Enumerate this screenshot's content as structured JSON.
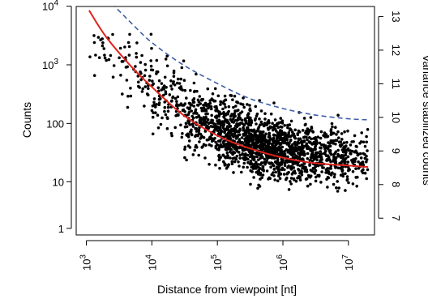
{
  "chart_data": {
    "type": "scatter",
    "xlabel": "Distance from viewpoint [nt]",
    "ylabel": "Counts",
    "y2label": "Variance stabilized counts",
    "x_scale": "log10",
    "y_scale": "variance-stabilized (asinh-like)",
    "xlim": [
      700,
      25000000
    ],
    "x_ticks": [
      {
        "value": 1000,
        "base": "10",
        "exp": "3"
      },
      {
        "value": 10000,
        "base": "10",
        "exp": "4"
      },
      {
        "value": 100000,
        "base": "10",
        "exp": "5"
      },
      {
        "value": 1000000,
        "base": "10",
        "exp": "6"
      },
      {
        "value": 10000000,
        "base": "10",
        "exp": "7"
      }
    ],
    "y_ticks_left": [
      {
        "value": 1,
        "label": "1"
      },
      {
        "value": 10,
        "label": "10"
      },
      {
        "value": 100,
        "label": "100"
      },
      {
        "value": 1000,
        "label": "10",
        "exp": "3"
      },
      {
        "value": 10000,
        "label": "10",
        "exp": "4"
      }
    ],
    "y_ticks_right": [
      "7",
      "8",
      "9",
      "10",
      "11",
      "12",
      "13"
    ],
    "y_right_range": [
      6.5,
      13.3
    ],
    "grid": false,
    "legend": "none",
    "series": [
      {
        "kind": "points",
        "color": "#000000",
        "density_bins": [
          {
            "x_log": [
              3.0,
              3.5
            ],
            "y_center": 3.2,
            "spread": 0.45,
            "n": 22
          },
          {
            "x_log": [
              3.5,
              4.0
            ],
            "y_center": 2.9,
            "spread": 0.5,
            "n": 55
          },
          {
            "x_log": [
              4.0,
              4.5
            ],
            "y_center": 2.45,
            "spread": 0.55,
            "n": 110
          },
          {
            "x_log": [
              4.5,
              5.0
            ],
            "y_center": 2.05,
            "spread": 0.55,
            "n": 220
          },
          {
            "x_log": [
              5.0,
              5.5
            ],
            "y_center": 1.8,
            "spread": 0.5,
            "n": 420
          },
          {
            "x_log": [
              5.5,
              6.0
            ],
            "y_center": 1.6,
            "spread": 0.5,
            "n": 480
          },
          {
            "x_log": [
              6.0,
              6.5
            ],
            "y_center": 1.5,
            "spread": 0.45,
            "n": 330
          },
          {
            "x_log": [
              6.5,
              7.0
            ],
            "y_center": 1.45,
            "spread": 0.45,
            "n": 230
          },
          {
            "x_log": [
              7.0,
              7.3
            ],
            "y_center": 1.4,
            "spread": 0.4,
            "n": 70
          }
        ]
      },
      {
        "kind": "line",
        "color": "#e0231b",
        "style": "solid",
        "x": [
          1100,
          2000,
          5000,
          10000,
          30000,
          100000,
          300000,
          1000000,
          3000000,
          10000000,
          20000000
        ],
        "y": [
          8500,
          3000,
          900,
          420,
          140,
          62,
          38,
          26,
          21,
          19,
          18
        ]
      },
      {
        "kind": "line",
        "color": "#3e5fa8",
        "style": "dashed",
        "x": [
          2000,
          5000,
          10000,
          30000,
          100000,
          300000,
          1000000,
          3000000,
          10000000,
          20000000
        ],
        "y": [
          14000,
          5000,
          2400,
          1000,
          480,
          270,
          180,
          140,
          120,
          115
        ]
      }
    ]
  }
}
